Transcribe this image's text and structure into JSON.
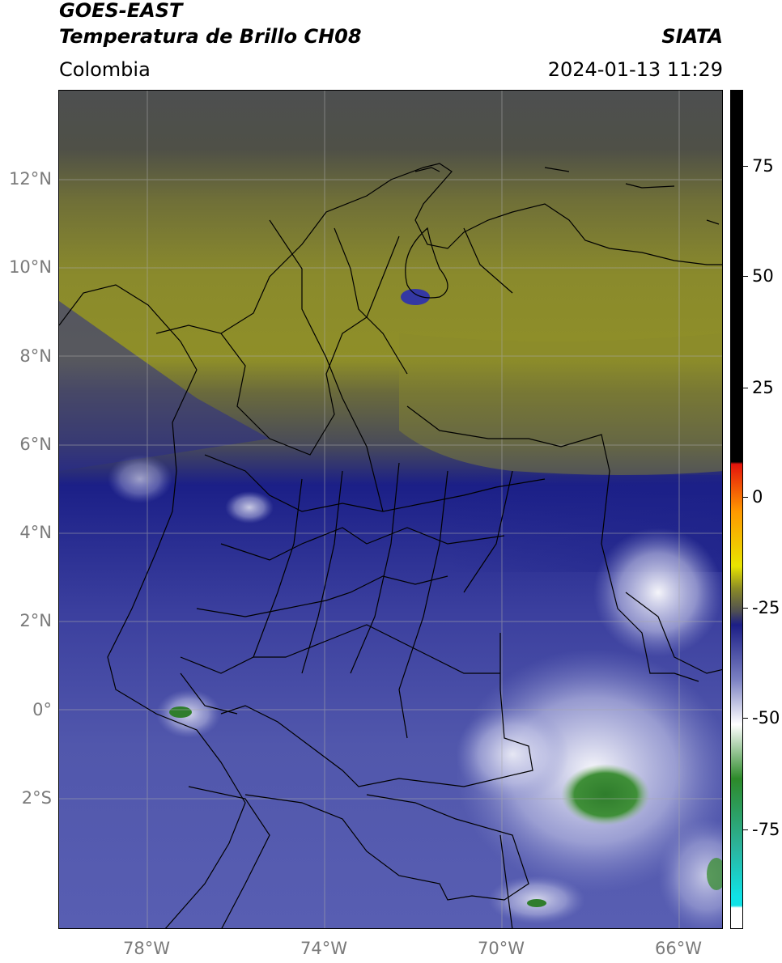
{
  "header": {
    "satellite": "GOES-EAST",
    "product": "Temperatura de Brillo CH08",
    "agency": "SIATA",
    "region": "Colombia",
    "datetime": "2024-01-13 11:29"
  },
  "map": {
    "projection": "PlateCarree",
    "lon_range": [
      -80,
      -65
    ],
    "lat_range": [
      -5,
      14
    ],
    "lat_labels": [
      "12°N",
      "10°N",
      "8°N",
      "6°N",
      "4°N",
      "2°N",
      "0°",
      "2°S"
    ],
    "lon_labels": [
      "78°W",
      "74°W",
      "70°W",
      "66°W"
    ],
    "gridlines": true
  },
  "colorbar": {
    "range": [
      -95,
      90
    ],
    "tick_labels": [
      "75",
      "50",
      "25",
      "0",
      "-25",
      "-50",
      "-75"
    ],
    "colors": {
      "warm": "#000000",
      "red": "#e4140c",
      "orange": "#ff9900",
      "yellow": "#e8e400",
      "olive": "#8a8a26",
      "dark_gray": "#4f4f52",
      "navy": "#1c1e86",
      "periwinkle": "#7a80c2",
      "white": "#ffffff",
      "green": "#2d8a2a",
      "teal": "#2cb39c",
      "cyan": "#10e2e6"
    }
  }
}
